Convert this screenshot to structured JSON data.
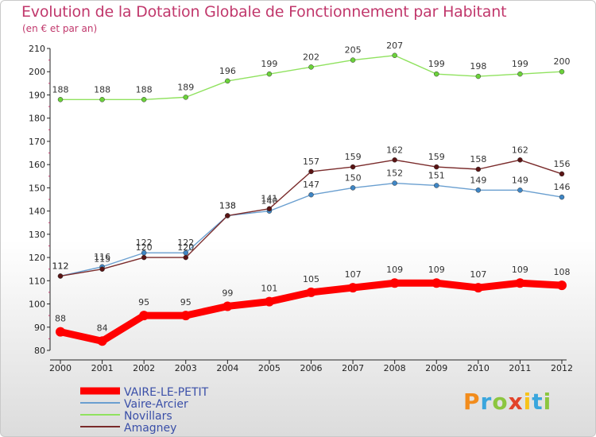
{
  "header": {
    "title": "Evolution de la Dotation Globale de Fonctionnement par Habitant",
    "subtitle": "(en € et par an)"
  },
  "logo": {
    "text": "Proxiti",
    "letters": [
      {
        "ch": "P",
        "color": "#f28c1c"
      },
      {
        "ch": "r",
        "color": "#3aa6dd"
      },
      {
        "ch": "o",
        "color": "#8cc63f"
      },
      {
        "ch": "x",
        "color": "#e2432a"
      },
      {
        "ch": "i",
        "color": "#f7c31a"
      },
      {
        "ch": "t",
        "color": "#3aa6dd"
      },
      {
        "ch": "i",
        "color": "#8cc63f"
      }
    ]
  },
  "chart_data": {
    "type": "line",
    "title": "Evolution de la Dotation Globale de Fonctionnement par Habitant",
    "ylabel": "(en € et par an)",
    "xlabel": "",
    "x": [
      "2000",
      "2001",
      "2002",
      "2003",
      "2004",
      "2005",
      "2006",
      "2007",
      "2008",
      "2009",
      "2010",
      "2011",
      "2012"
    ],
    "ylim": [
      80,
      210
    ],
    "yticks": [
      80,
      90,
      100,
      110,
      120,
      130,
      140,
      150,
      160,
      170,
      180,
      190,
      200,
      210
    ],
    "grid": false,
    "legend_position": "bottom-left",
    "series": [
      {
        "name": "Novillars",
        "color": "#90e25f",
        "dot": "#6bd23a",
        "width": "thin",
        "values": [
          188,
          188,
          188,
          189,
          196,
          199,
          202,
          205,
          207,
          199,
          198,
          199,
          200
        ]
      },
      {
        "name": "Vaire-Arcier",
        "color": "#6a9fd0",
        "dot": "#3f86c5",
        "width": "thin",
        "values": [
          112,
          116,
          122,
          122,
          138,
          140,
          147,
          150,
          152,
          151,
          149,
          149,
          146
        ]
      },
      {
        "name": "Amagney",
        "color": "#7a2b2b",
        "dot": "#5a1414",
        "width": "thin",
        "values": [
          112,
          115,
          120,
          120,
          138,
          141,
          157,
          159,
          162,
          159,
          158,
          162,
          156
        ]
      },
      {
        "name": "VAIRE-LE-PETIT",
        "color": "#ff0000",
        "dot": "#ff0000",
        "width": "thick",
        "values": [
          88,
          84,
          95,
          95,
          99,
          101,
          105,
          107,
          109,
          109,
          107,
          109,
          108
        ]
      }
    ],
    "legend_order": [
      "VAIRE-LE-PETIT",
      "Vaire-Arcier",
      "Novillars",
      "Amagney"
    ]
  }
}
